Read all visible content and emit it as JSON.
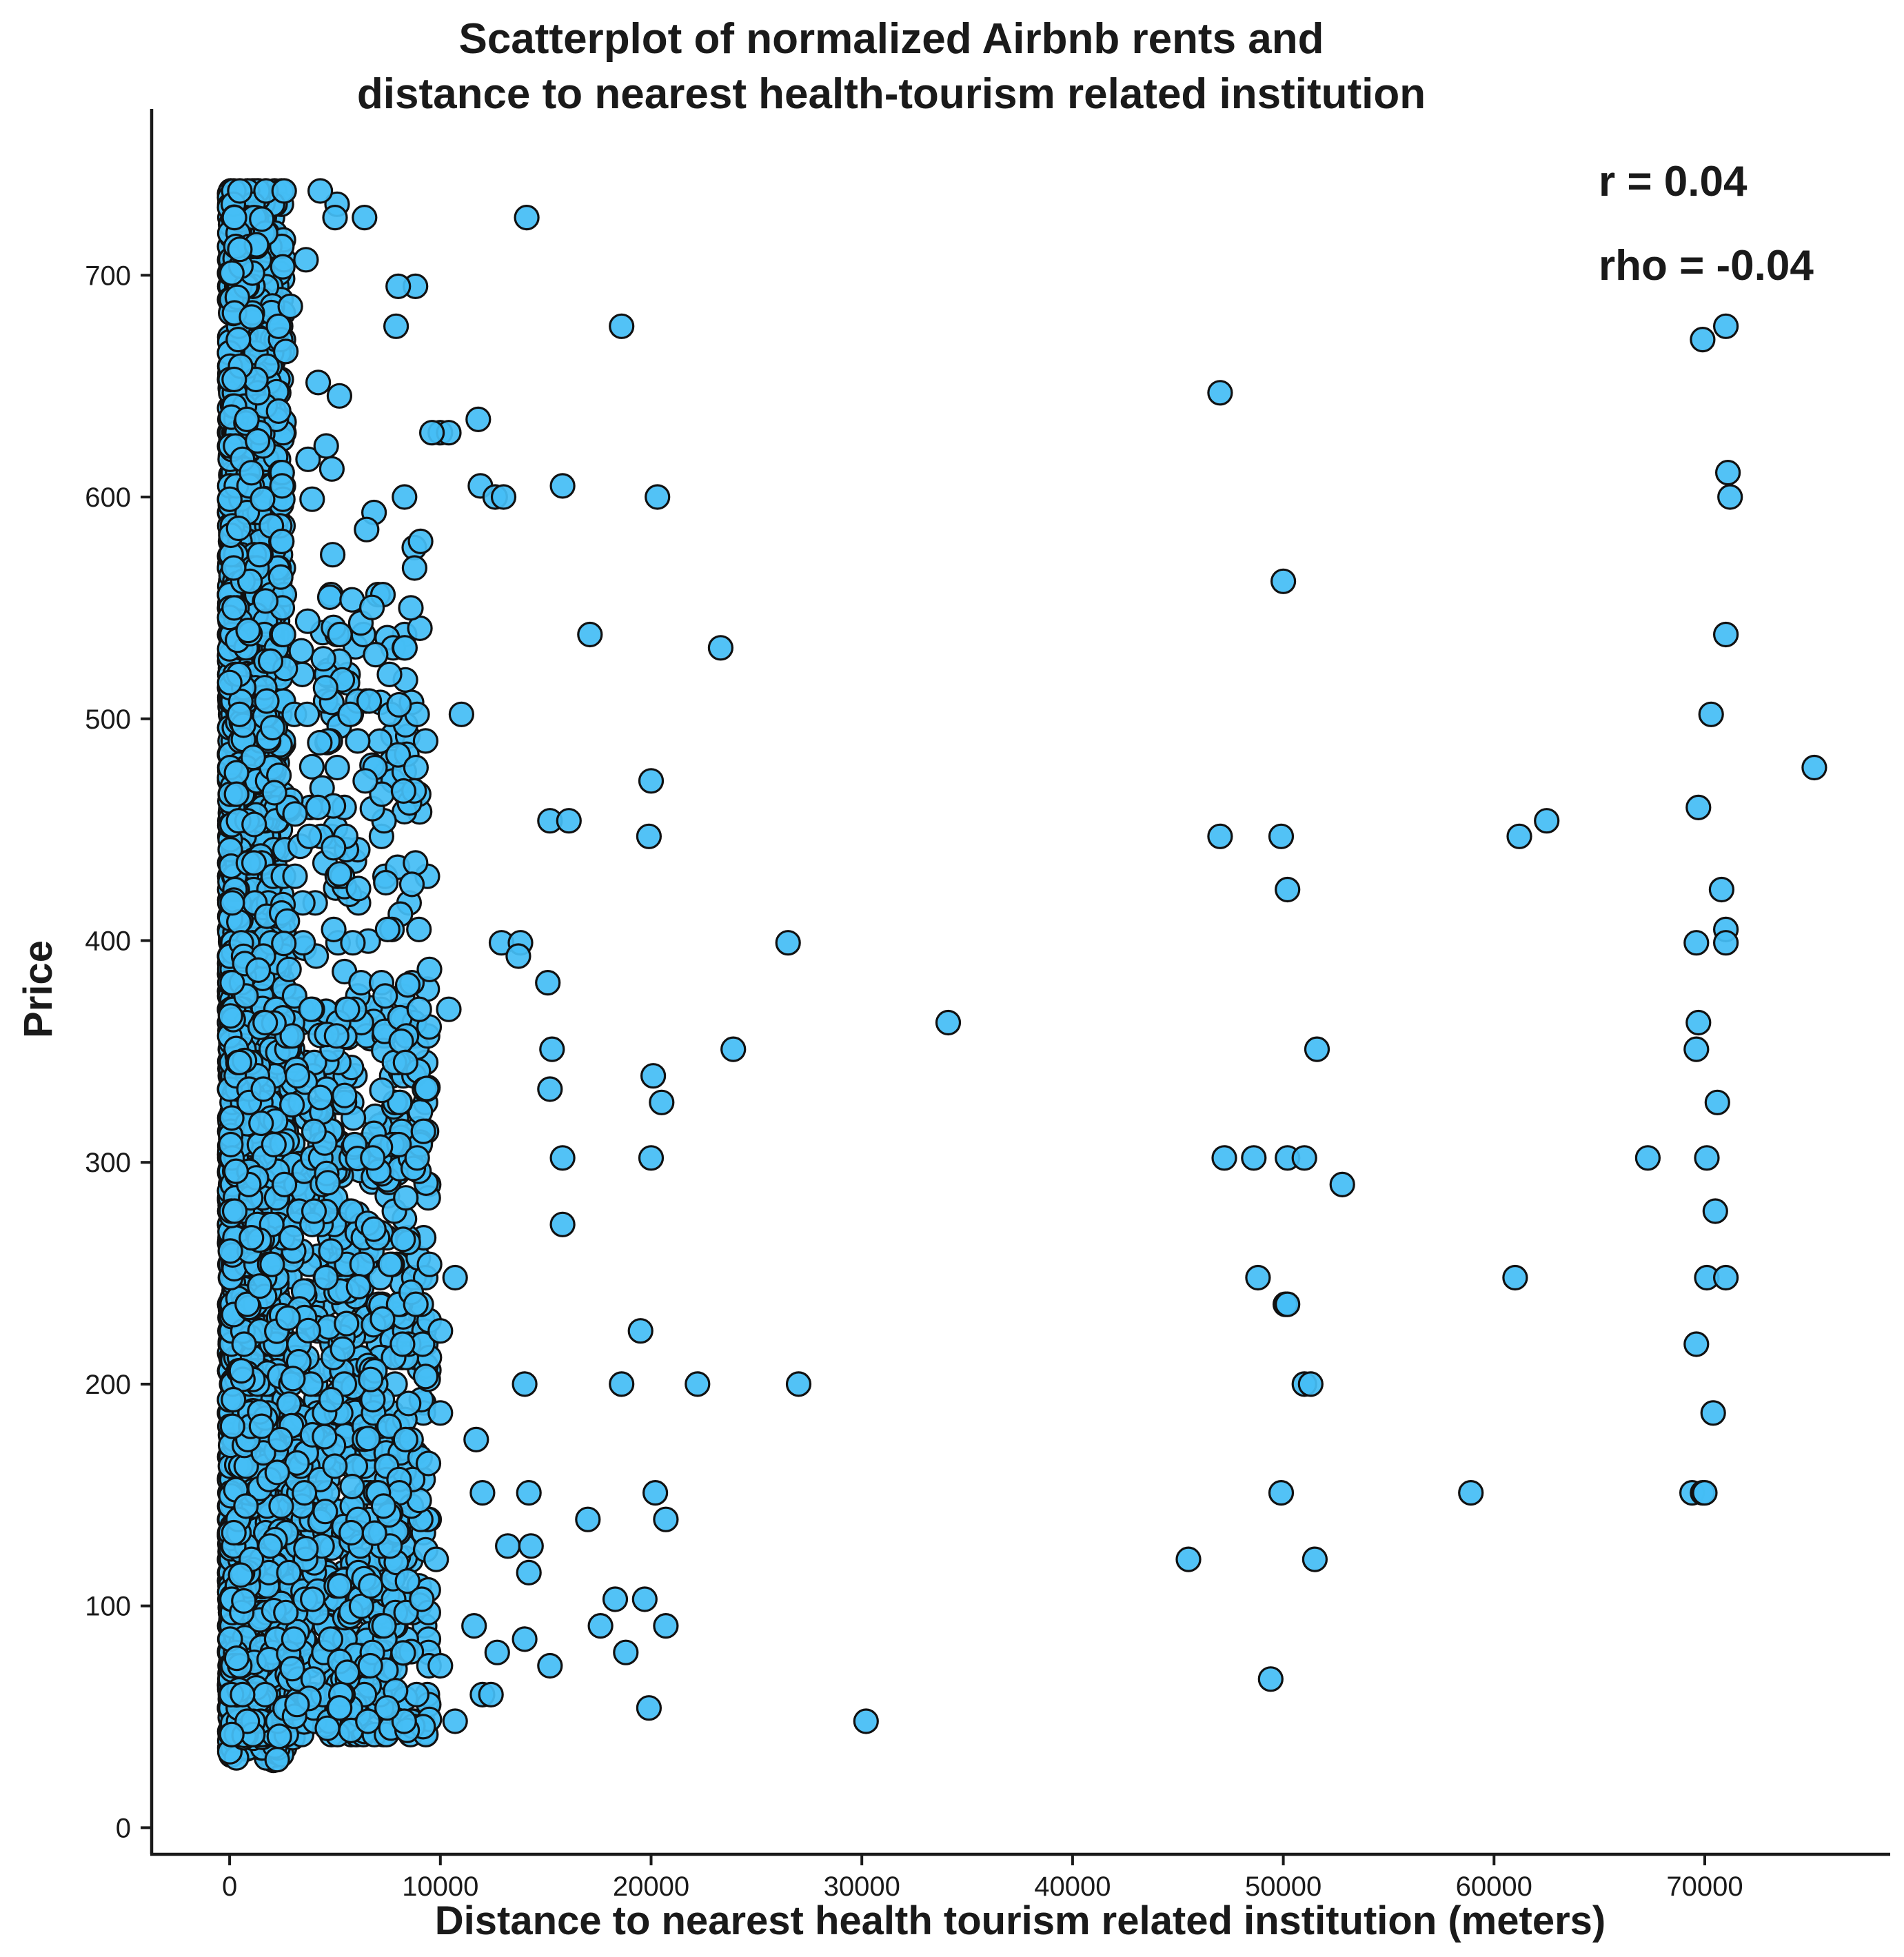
{
  "chart_data": {
    "type": "scatter",
    "title_lines": [
      "Scatterplot of normalized Airbnb rents and",
      "distance to nearest health-tourism related institution"
    ],
    "xlabel": "Distance to nearest health tourism related institution (meters)",
    "ylabel": "Price",
    "xlim": [
      -3700,
      78800
    ],
    "ylim": [
      -12,
      775
    ],
    "xticks": [
      0,
      10000,
      20000,
      30000,
      40000,
      50000,
      60000,
      70000
    ],
    "xtick_labels": [
      "0",
      "10000",
      "20000",
      "30000",
      "40000",
      "50000",
      "60000",
      "70000"
    ],
    "yticks": [
      0,
      100,
      200,
      300,
      400,
      500,
      600,
      700
    ],
    "ytick_labels": [
      "0",
      "100",
      "200",
      "300",
      "400",
      "500",
      "600",
      "700"
    ],
    "annotations": [
      "r = 0.04",
      "rho = -0.04"
    ],
    "grid": false,
    "marker_color": "#45bdf5",
    "marker_edge_color": "#111111",
    "outliers": [
      [
        14100,
        726
      ],
      [
        18600,
        677
      ],
      [
        8000,
        695
      ],
      [
        7900,
        677
      ],
      [
        6400,
        726
      ],
      [
        5000,
        726
      ],
      [
        4300,
        738
      ],
      [
        10000,
        629
      ],
      [
        10400,
        629
      ],
      [
        9600,
        629
      ],
      [
        11800,
        635
      ],
      [
        11900,
        605
      ],
      [
        12600,
        600
      ],
      [
        13000,
        600
      ],
      [
        15800,
        605
      ],
      [
        20300,
        600
      ],
      [
        8300,
        600
      ],
      [
        17100,
        538
      ],
      [
        23300,
        532
      ],
      [
        11000,
        502
      ],
      [
        8600,
        550
      ],
      [
        15200,
        454
      ],
      [
        16100,
        454
      ],
      [
        19900,
        447
      ],
      [
        20000,
        472
      ],
      [
        26500,
        399
      ],
      [
        12900,
        399
      ],
      [
        13800,
        399
      ],
      [
        13700,
        393
      ],
      [
        15100,
        381
      ],
      [
        10400,
        369
      ],
      [
        34100,
        363
      ],
      [
        23900,
        351
      ],
      [
        15300,
        351
      ],
      [
        15200,
        333
      ],
      [
        20100,
        339
      ],
      [
        20500,
        327
      ],
      [
        15800,
        302
      ],
      [
        20000,
        302
      ],
      [
        15800,
        272
      ],
      [
        10700,
        248
      ],
      [
        19500,
        224
      ],
      [
        10000,
        224
      ],
      [
        14000,
        200
      ],
      [
        18600,
        200
      ],
      [
        22200,
        200
      ],
      [
        27000,
        200
      ],
      [
        11700,
        175
      ],
      [
        12000,
        151
      ],
      [
        14200,
        151
      ],
      [
        20200,
        151
      ],
      [
        17000,
        139
      ],
      [
        20700,
        139
      ],
      [
        13200,
        127
      ],
      [
        14300,
        127
      ],
      [
        14200,
        115
      ],
      [
        18300,
        103
      ],
      [
        19700,
        103
      ],
      [
        17600,
        91
      ],
      [
        20700,
        91
      ],
      [
        11600,
        91
      ],
      [
        14000,
        85
      ],
      [
        12700,
        79
      ],
      [
        18800,
        79
      ],
      [
        15200,
        73
      ],
      [
        10000,
        73
      ],
      [
        12000,
        60
      ],
      [
        12400,
        60
      ],
      [
        19900,
        54
      ],
      [
        10700,
        48
      ],
      [
        30200,
        48
      ],
      [
        9800,
        121
      ],
      [
        10000,
        187
      ],
      [
        9300,
        490
      ],
      [
        9000,
        369
      ],
      [
        8900,
        302
      ],
      [
        47000,
        647
      ],
      [
        50000,
        562
      ],
      [
        47000,
        447
      ],
      [
        49900,
        447
      ],
      [
        50200,
        423
      ],
      [
        51600,
        351
      ],
      [
        47200,
        302
      ],
      [
        48600,
        302
      ],
      [
        50200,
        302
      ],
      [
        51000,
        302
      ],
      [
        52800,
        290
      ],
      [
        48800,
        248
      ],
      [
        50100,
        236
      ],
      [
        50200,
        236
      ],
      [
        51000,
        200
      ],
      [
        51300,
        200
      ],
      [
        49900,
        151
      ],
      [
        45500,
        121
      ],
      [
        51500,
        121
      ],
      [
        49400,
        67
      ],
      [
        58900,
        151
      ],
      [
        61200,
        447
      ],
      [
        62500,
        454
      ],
      [
        61000,
        248
      ],
      [
        67300,
        302
      ],
      [
        69900,
        671
      ],
      [
        71000,
        677
      ],
      [
        71100,
        611
      ],
      [
        71200,
        600
      ],
      [
        71000,
        538
      ],
      [
        70300,
        502
      ],
      [
        75200,
        478
      ],
      [
        69700,
        460
      ],
      [
        70800,
        423
      ],
      [
        71000,
        405
      ],
      [
        71000,
        399
      ],
      [
        69600,
        399
      ],
      [
        69700,
        363
      ],
      [
        69600,
        351
      ],
      [
        70600,
        327
      ],
      [
        70100,
        302
      ],
      [
        70500,
        278
      ],
      [
        70100,
        248
      ],
      [
        71000,
        248
      ],
      [
        69600,
        218
      ],
      [
        70400,
        187
      ],
      [
        69400,
        151
      ],
      [
        69900,
        151
      ],
      [
        70000,
        151
      ]
    ],
    "dense_band": {
      "note": "several thousand listings concentrated at short distances",
      "x_range": [
        0,
        9500
      ],
      "y_range": [
        18,
        738
      ]
    }
  }
}
